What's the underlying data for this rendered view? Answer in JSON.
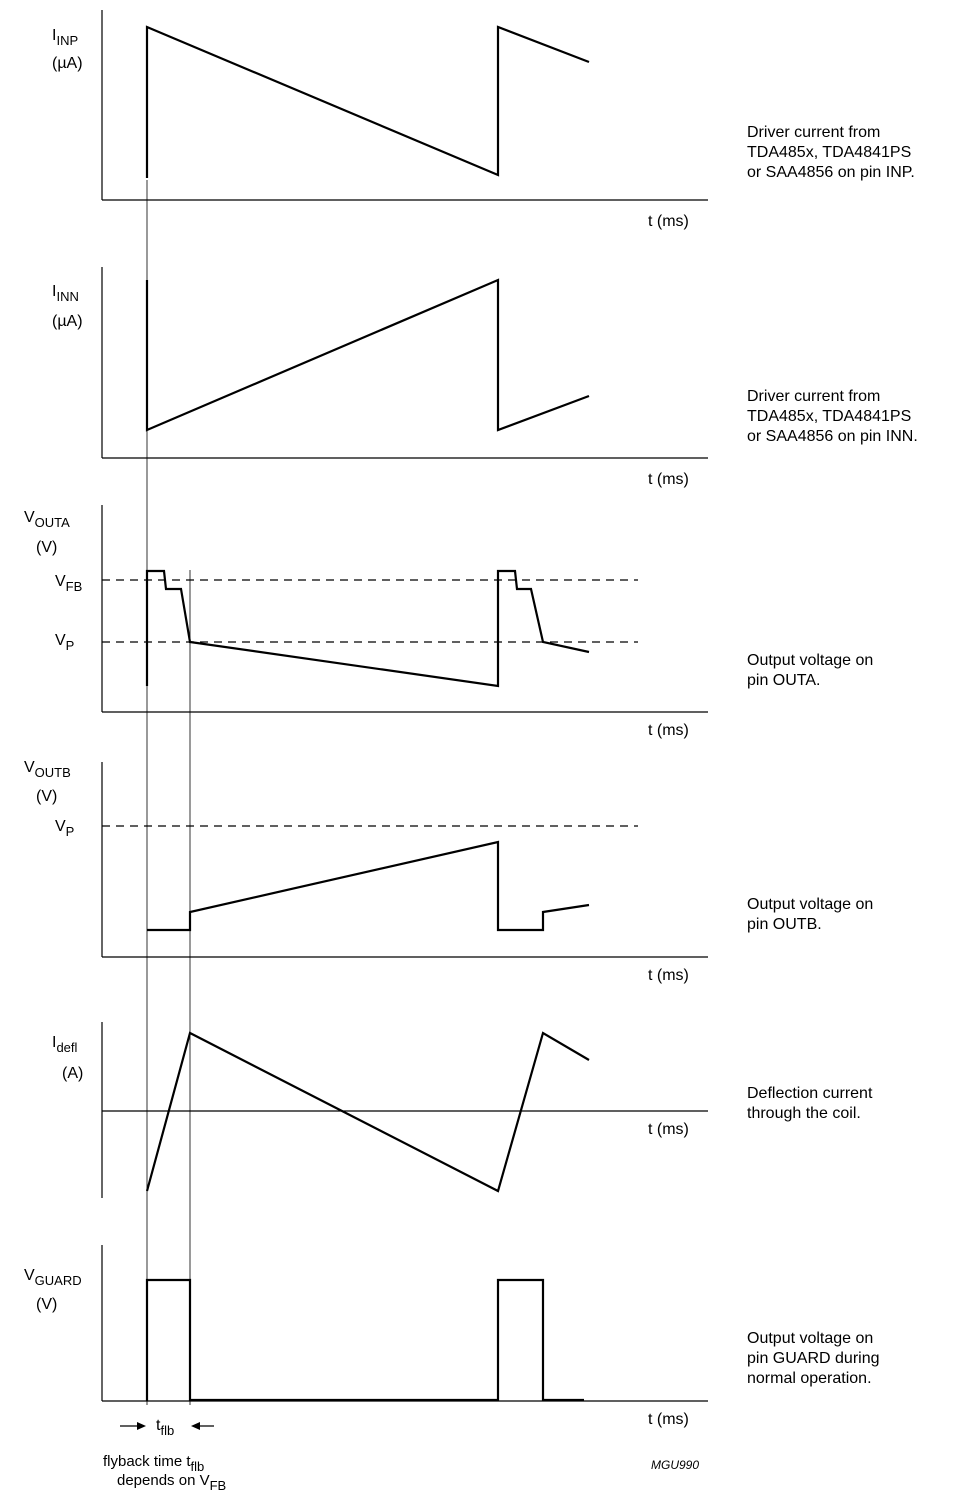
{
  "panels": [
    {
      "id": "inp",
      "label": "I",
      "label_sub": "INP",
      "unit": "(µA)",
      "time_axis": "t (ms)",
      "description": [
        "Driver current from",
        "TDA485x, TDA4841PS",
        "or SAA4856 on pin INP."
      ]
    },
    {
      "id": "inn",
      "label": "I",
      "label_sub": "INN",
      "unit": "(µA)",
      "time_axis": "t (ms)",
      "description": [
        "Driver current from",
        "TDA485x, TDA4841PS",
        "or SAA4856 on pin INN."
      ]
    },
    {
      "id": "outa",
      "label": "V",
      "label_sub": "OUTA",
      "unit": "(V)",
      "time_axis": "t (ms)",
      "description": [
        "Output voltage on",
        "pin OUTA."
      ]
    },
    {
      "id": "outb",
      "label": "V",
      "label_sub": "OUTB",
      "unit": "(V)",
      "time_axis": "t (ms)",
      "description": [
        "Output voltage on",
        "pin OUTB."
      ]
    },
    {
      "id": "defl",
      "label": "I",
      "label_sub": "defl",
      "unit": "(A)",
      "time_axis": "t (ms)",
      "description": [
        "Deflection current",
        "through the coil."
      ]
    },
    {
      "id": "guard",
      "label": "V",
      "label_sub": "GUARD",
      "unit": "(V)",
      "time_axis": "t (ms)",
      "description": [
        "Output voltage on",
        "pin GUARD during",
        "normal operation."
      ]
    }
  ],
  "levels": {
    "vfb": {
      "main": "V",
      "sub": "FB"
    },
    "vp": {
      "main": "V",
      "sub": "P"
    }
  },
  "flyback": {
    "symbol_main": "t",
    "symbol_sub": "flb",
    "note_line1_main": "flyback time t",
    "note_line1_sub": "flb",
    "note_line2_main": "depends on V",
    "note_line2_sub": "FB"
  },
  "figure_code": "MGU990"
}
